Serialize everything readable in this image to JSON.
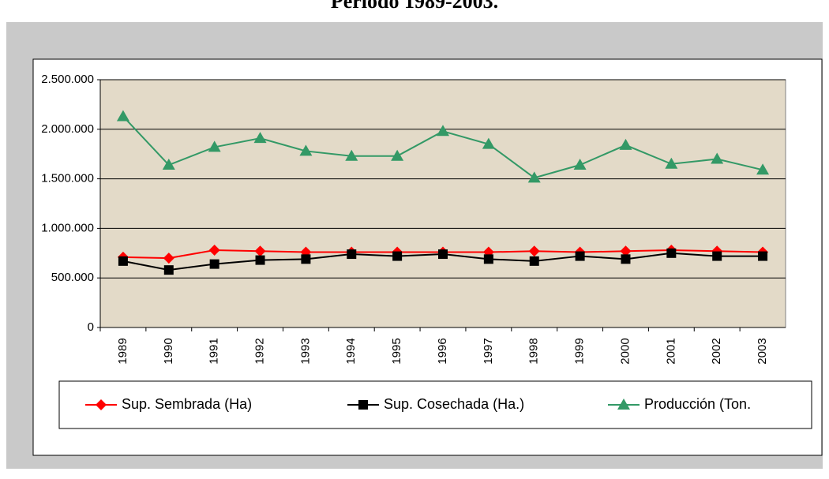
{
  "chart_data": {
    "type": "line",
    "title": "Período 1989-2003.",
    "categories": [
      "1989",
      "1990",
      "1991",
      "1992",
      "1993",
      "1994",
      "1995",
      "1996",
      "1997",
      "1998",
      "1999",
      "2000",
      "2001",
      "2002",
      "2003"
    ],
    "series": [
      {
        "name": "Sup. Sembrada (Ha)",
        "color": "#ff0000",
        "marker": "diamond",
        "values": [
          710000,
          700000,
          780000,
          770000,
          760000,
          760000,
          760000,
          760000,
          760000,
          770000,
          760000,
          770000,
          780000,
          770000,
          760000
        ]
      },
      {
        "name": "Sup. Cosechada (Ha.)",
        "color": "#000000",
        "marker": "square",
        "values": [
          670000,
          580000,
          640000,
          680000,
          690000,
          740000,
          720000,
          740000,
          690000,
          670000,
          720000,
          690000,
          750000,
          720000,
          720000
        ]
      },
      {
        "name": "Producción (Ton.",
        "color": "#339966",
        "marker": "triangle",
        "values": [
          2130000,
          1640000,
          1820000,
          1910000,
          1780000,
          1730000,
          1730000,
          1980000,
          1850000,
          1510000,
          1640000,
          1840000,
          1650000,
          1700000,
          1590000
        ]
      }
    ],
    "ylim": [
      0,
      2500000
    ],
    "yticks": [
      0,
      {
        "value": 500000,
        "label": "500.000"
      },
      {
        "value": 1000000,
        "label": "1.000.000"
      },
      {
        "value": 1500000,
        "label": "1.500.000"
      },
      {
        "value": 2000000,
        "label": "2.000.000"
      },
      {
        "value": 2500000,
        "label": "2.500.000"
      }
    ],
    "grid": true,
    "legend": "bottom"
  }
}
